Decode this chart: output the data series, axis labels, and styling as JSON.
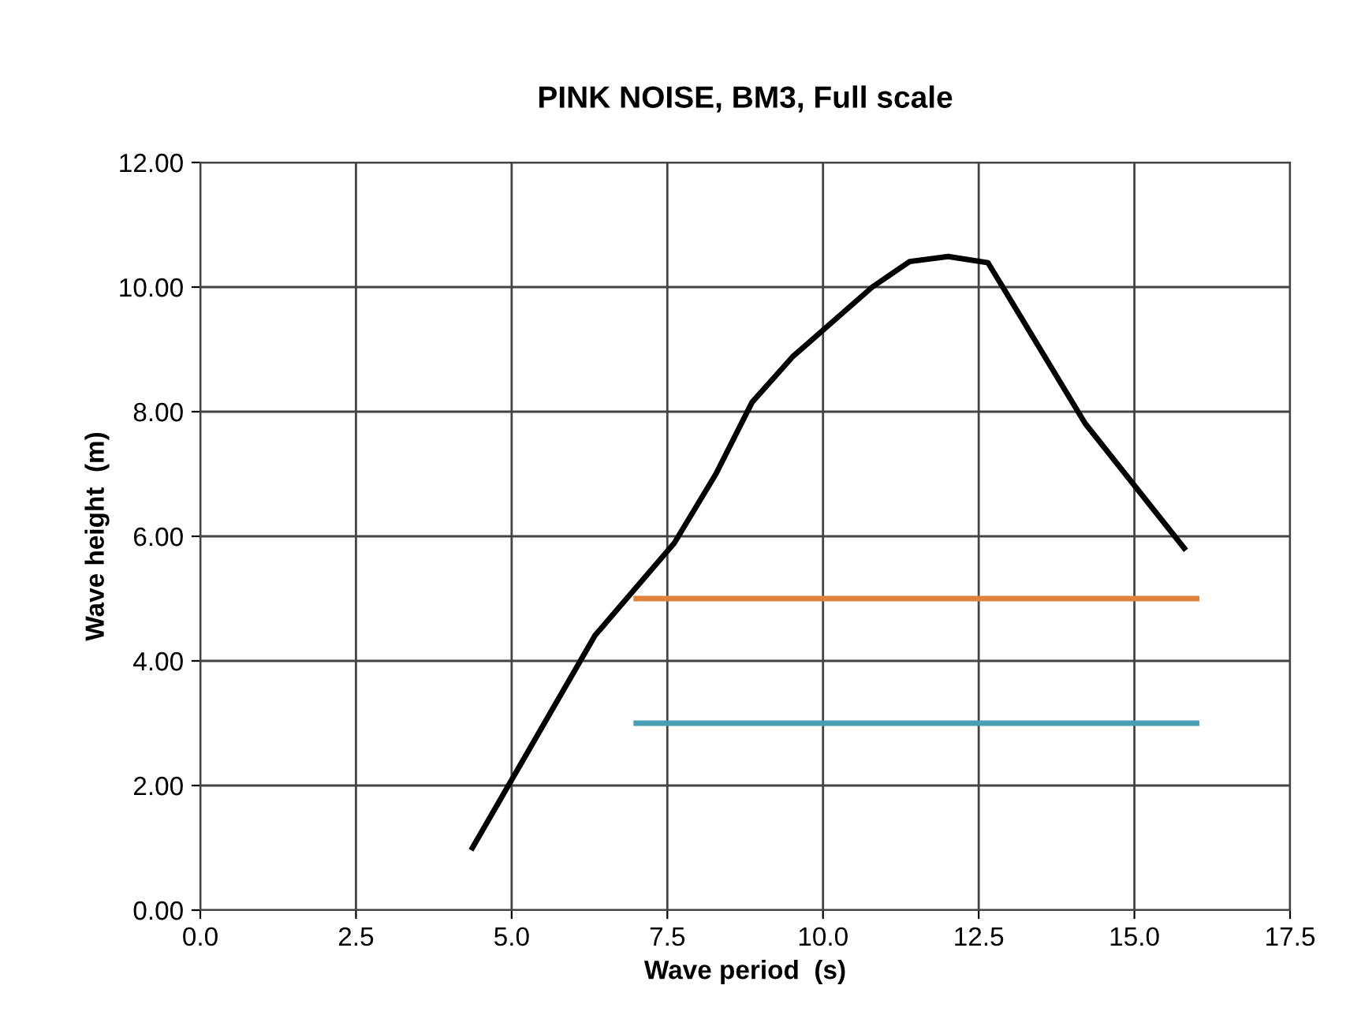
{
  "chart_data": {
    "type": "line",
    "title": "PINK NOISE, BM3, Full scale",
    "xlabel": "Wave period  (s)",
    "ylabel": "Wave height  (m)",
    "series": [
      {
        "color": "#000000",
        "x": [
          4.37,
          6.34,
          7.61,
          8.28,
          8.86,
          9.51,
          10.79,
          11.39,
          12.01,
          12.65,
          14.21,
          15.8
        ],
        "values": [
          1.0,
          4.41,
          5.89,
          7.0,
          8.15,
          8.88,
          10.0,
          10.41,
          10.49,
          10.39,
          7.81,
          5.81
        ]
      },
      {
        "color": "#e0823a",
        "x": [
          7.0,
          16.0
        ],
        "values": [
          5.0,
          5.0
        ]
      },
      {
        "color": "#4a9fb5",
        "x": [
          7.0,
          16.0
        ],
        "values": [
          3.0,
          3.0
        ]
      }
    ],
    "xlim": [
      0,
      17.5
    ],
    "xticks": [
      {
        "value": 0,
        "label": "0.0"
      },
      {
        "value": 2.5,
        "label": "2.5"
      },
      {
        "value": 5,
        "label": "5.0"
      },
      {
        "value": 7.5,
        "label": "7.5"
      },
      {
        "value": 10,
        "label": "10.0"
      },
      {
        "value": 12.5,
        "label": "12.5"
      },
      {
        "value": 15,
        "label": "15.0"
      },
      {
        "value": 17.5,
        "label": "17.5"
      }
    ],
    "ylim": [
      0,
      12
    ],
    "yticks": [
      {
        "value": 0,
        "label": "0.00"
      },
      {
        "value": 2,
        "label": "2.00"
      },
      {
        "value": 4,
        "label": "4.00"
      },
      {
        "value": 6,
        "label": "6.00"
      },
      {
        "value": 8,
        "label": "8.00"
      },
      {
        "value": 10,
        "label": "10.00"
      },
      {
        "value": 12,
        "label": "12.00"
      }
    ],
    "grid": true
  }
}
